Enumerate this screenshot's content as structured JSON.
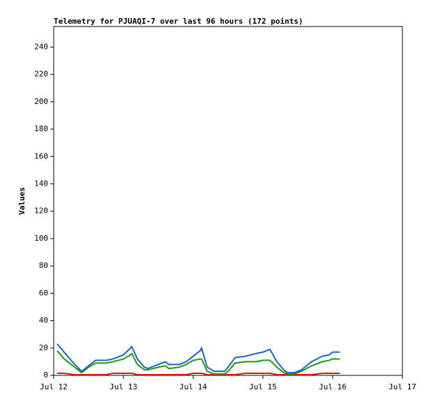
{
  "chart_data": {
    "type": "line",
    "title": "Telemetry for PJUAQI-7 over last 96 hours (172 points)",
    "y_label": "Values",
    "x": [
      12.05,
      12.15,
      12.3,
      12.4,
      12.5,
      12.6,
      12.75,
      12.85,
      13.0,
      13.1,
      13.12,
      13.2,
      13.3,
      13.35,
      13.5,
      13.6,
      13.65,
      13.8,
      13.9,
      14.0,
      14.1,
      14.12,
      14.2,
      14.3,
      14.45,
      14.5,
      14.6,
      14.75,
      14.9,
      15.0,
      15.1,
      15.2,
      15.3,
      15.35,
      15.45,
      15.55,
      15.7,
      15.85,
      15.95,
      16.0,
      16.1
    ],
    "series": [
      {
        "color": "#1f5fd0",
        "values": [
          23,
          17,
          8,
          3,
          7,
          11,
          11,
          12,
          15,
          20,
          21,
          12,
          6,
          5,
          8,
          10,
          8,
          8,
          10,
          14,
          18,
          20,
          6,
          3,
          3,
          6,
          13,
          14,
          16,
          17,
          19,
          10,
          4,
          2,
          2,
          4,
          10,
          14,
          15,
          17,
          17
        ]
      },
      {
        "color": "#11a011",
        "values": [
          18,
          12,
          6,
          2,
          6,
          9,
          9,
          10,
          12,
          15,
          16,
          8,
          4,
          4,
          6,
          7,
          5,
          6,
          8,
          11,
          12,
          12,
          3,
          1,
          1,
          3,
          9,
          10,
          10,
          11,
          11,
          6,
          2,
          1,
          1,
          3,
          7,
          10,
          11,
          12,
          12
        ]
      },
      {
        "color": "#e01010",
        "values": [
          1.5,
          1.5,
          0.5,
          0.5,
          0.5,
          0.5,
          0.5,
          1.5,
          1.5,
          1.5,
          1.5,
          0.5,
          0.5,
          0.5,
          0.5,
          0.5,
          0.5,
          0.5,
          0.5,
          1.5,
          1.5,
          1.5,
          0.5,
          0.5,
          0.5,
          0.5,
          0.5,
          1.5,
          1.5,
          1.5,
          1.5,
          0.5,
          0.5,
          0.5,
          0.5,
          0.5,
          0.5,
          1.5,
          1.5,
          1.5,
          1.5
        ]
      }
    ],
    "xlim": [
      12,
      17
    ],
    "xticks": [
      {
        "value": 12,
        "label": "Jul 12"
      },
      {
        "value": 13,
        "label": "Jul 13"
      },
      {
        "value": 14,
        "label": "Jul 14"
      },
      {
        "value": 15,
        "label": "Jul 15"
      },
      {
        "value": 16,
        "label": "Jul 16"
      },
      {
        "value": 17,
        "label": "Jul 17"
      }
    ],
    "ylim": [
      0,
      255
    ],
    "yticks": [
      0,
      20,
      40,
      60,
      80,
      100,
      120,
      140,
      160,
      180,
      200,
      220,
      240
    ]
  }
}
